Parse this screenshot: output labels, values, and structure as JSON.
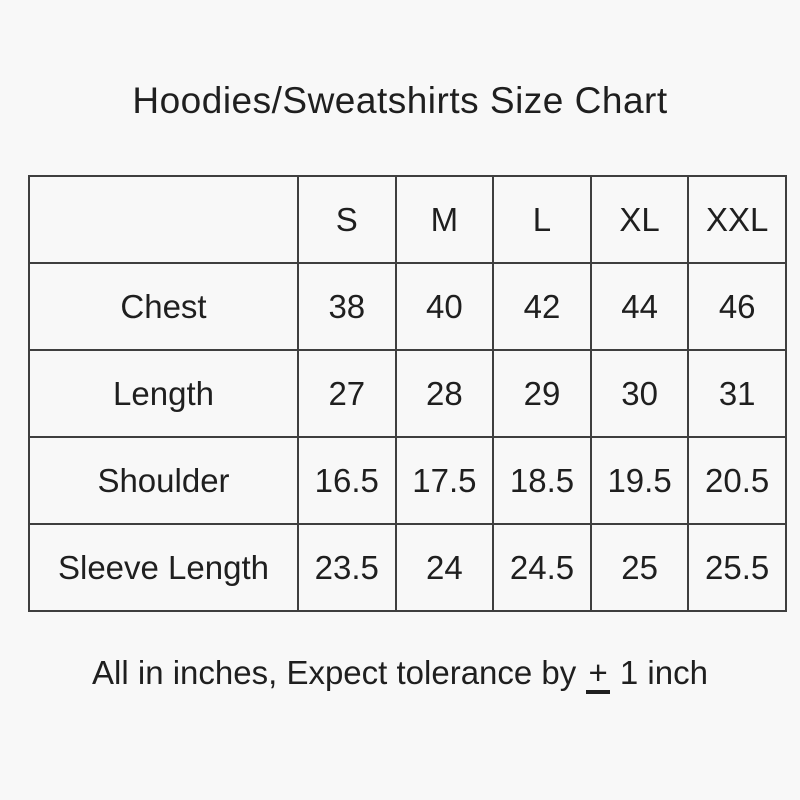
{
  "colors": {
    "background": "#f8f8f8",
    "text": "#1f1f1f",
    "table_border": "#3f3f3f"
  },
  "title": "Hoodies/Sweatshirts Size Chart",
  "chart_data": {
    "type": "table",
    "title": "Hoodies/Sweatshirts Size Chart",
    "columns": [
      "",
      "S",
      "M",
      "L",
      "XL",
      "XXL"
    ],
    "rows": [
      [
        "Chest",
        38,
        40,
        42,
        44,
        46
      ],
      [
        "Length",
        27,
        28,
        29,
        30,
        31
      ],
      [
        "Shoulder",
        16.5,
        17.5,
        18.5,
        19.5,
        20.5
      ],
      [
        "Sleeve Length",
        23.5,
        24,
        24.5,
        25,
        25.5
      ]
    ],
    "units": "inches",
    "note": "All in inches, Expect tolerance by ± 1 inch"
  },
  "footer": {
    "text_before": "All in inches, Expect tolerance by",
    "plus_minus": "+",
    "text_after": "1 inch"
  }
}
